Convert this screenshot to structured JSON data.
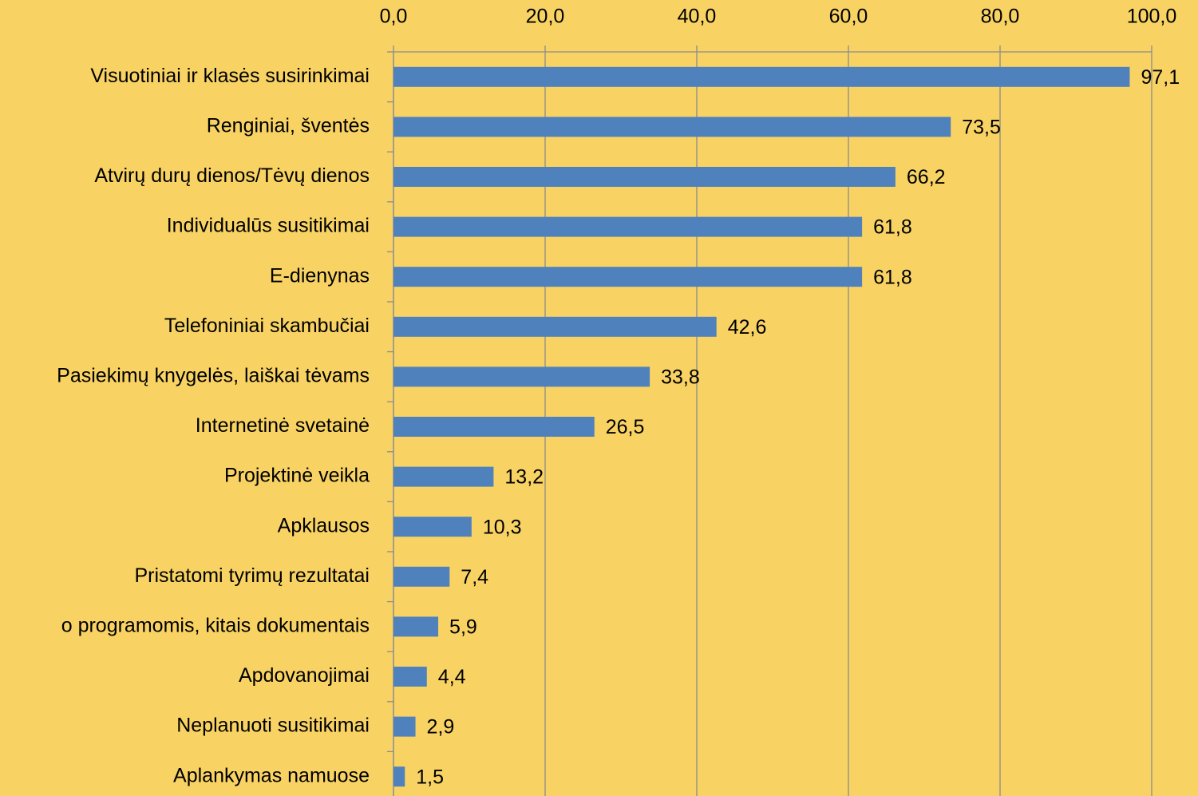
{
  "chart_data": {
    "type": "barh",
    "categories": [
      "Visuotiniai ir klasės susirinkimai",
      "Renginiai, šventės",
      "Atvirų durų dienos/Tėvų dienos",
      "Individualūs susitikimai",
      "E-dienynas",
      "Telefoniniai skambučiai",
      "Pasiekimų knygelės, laiškai tėvams",
      "Internetinė svetainė",
      "Projektinė veikla",
      "Apklausos",
      "Pristatomi tyrimų rezultatai",
      "o programomis, kitais dokumentais",
      "Apdovanojimai",
      "Neplanuoti susitikimai",
      "Aplankymas namuose"
    ],
    "values": [
      97.1,
      73.5,
      66.2,
      61.8,
      61.8,
      42.6,
      33.8,
      26.5,
      13.2,
      10.3,
      7.4,
      5.9,
      4.4,
      2.9,
      1.5
    ],
    "value_labels": [
      "97,1",
      "73,5",
      "66,2",
      "61,8",
      "61,8",
      "42,6",
      "33,8",
      "26,5",
      "13,2",
      "10,3",
      "7,4",
      "5,9",
      "4,4",
      "2,9",
      "1,5"
    ],
    "color": "#4f81bd",
    "xlim": [
      0,
      100
    ],
    "xticks": [
      {
        "value": 0,
        "label": "0,0"
      },
      {
        "value": 20,
        "label": "20,0"
      },
      {
        "value": 40,
        "label": "40,0"
      },
      {
        "value": 60,
        "label": "60,0"
      },
      {
        "value": 80,
        "label": "80,0"
      },
      {
        "value": 100,
        "label": "100,0"
      }
    ],
    "grid": true
  }
}
